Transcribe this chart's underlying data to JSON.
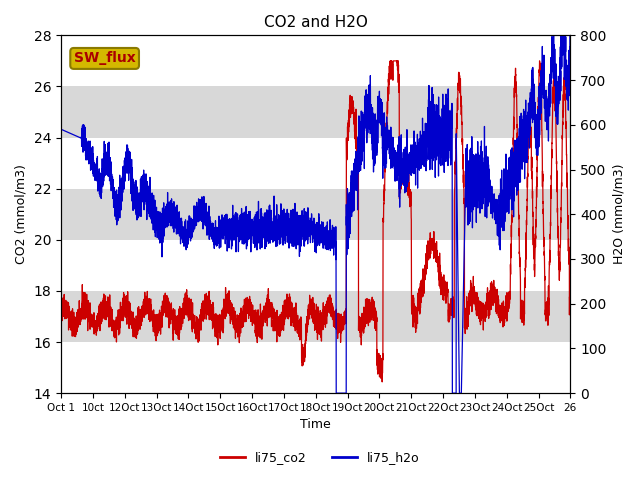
{
  "title": "CO2 and H2O",
  "xlabel": "Time",
  "ylabel_left": "CO2 (mmol/m3)",
  "ylabel_right": "H2O (mmol/m3)",
  "ylim_left": [
    14,
    28
  ],
  "ylim_right": [
    0,
    800
  ],
  "yticks_left": [
    14,
    16,
    18,
    20,
    22,
    24,
    26,
    28
  ],
  "yticks_right": [
    0,
    100,
    200,
    300,
    400,
    500,
    600,
    700,
    800
  ],
  "xtick_labels": [
    "Oct 1",
    "10ct",
    "12Oct",
    "13Oct",
    "14Oct",
    "15Oct",
    "16Oct",
    "17Oct",
    "18Oct",
    "19Oct",
    "20Oct",
    "21Oct",
    "22Oct",
    "23Oct",
    "24Oct",
    "25Oct",
    "26"
  ],
  "legend_labels": [
    "li75_co2",
    "li75_h2o"
  ],
  "co2_color": "#cc0000",
  "h2o_color": "#0000cc",
  "band_color": "#d8d8d8",
  "annotation_text": "SW_flux",
  "annotation_bg": "#d4b800",
  "annotation_edge": "#8a7a00",
  "annotation_fg": "#aa0000"
}
